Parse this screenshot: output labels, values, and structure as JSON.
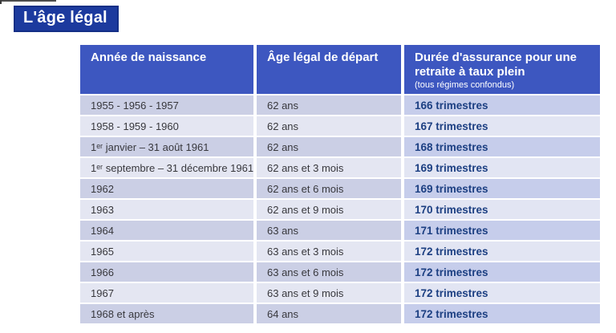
{
  "page": {
    "title": "L'âge légal"
  },
  "colors": {
    "title_bg": "#1c3a9e",
    "header_bg": "#3d57c0",
    "row_dark": "#cbcfe5",
    "row_dark_last_col": "#c6cdeb",
    "row_light": "#e4e6f2",
    "value_text_blue": "#1c3f82"
  },
  "table": {
    "headers": [
      {
        "label": "Année de naissance"
      },
      {
        "label": "Âge légal de départ"
      },
      {
        "label": "Durée d'assurance pour une retraite à taux plein",
        "sublabel": "(tous régimes confondus)"
      }
    ],
    "rows": [
      [
        "1955 - 1956 - 1957",
        "62 ans",
        "166 trimestres"
      ],
      [
        "1958 - 1959 - 1960",
        "62 ans",
        "167 trimestres"
      ],
      [
        "1ᵉʳ janvier – 31 août 1961",
        "62 ans",
        "168 trimestres"
      ],
      [
        "1ᵉʳ septembre – 31 décembre 1961",
        "62 ans et 3 mois",
        "169 trimestres"
      ],
      [
        "1962",
        "62 ans et 6 mois",
        "169 trimestres"
      ],
      [
        "1963",
        "62 ans et 9 mois",
        "170 trimestres"
      ],
      [
        "1964",
        "63 ans",
        "171 trimestres"
      ],
      [
        "1965",
        "63 ans et 3 mois",
        "172 trimestres"
      ],
      [
        "1966",
        "63 ans et 6 mois",
        "172 trimestres"
      ],
      [
        "1967",
        "63 ans et 9 mois",
        "172 trimestres"
      ],
      [
        "1968 et après",
        "64 ans",
        "172 trimestres"
      ]
    ]
  }
}
